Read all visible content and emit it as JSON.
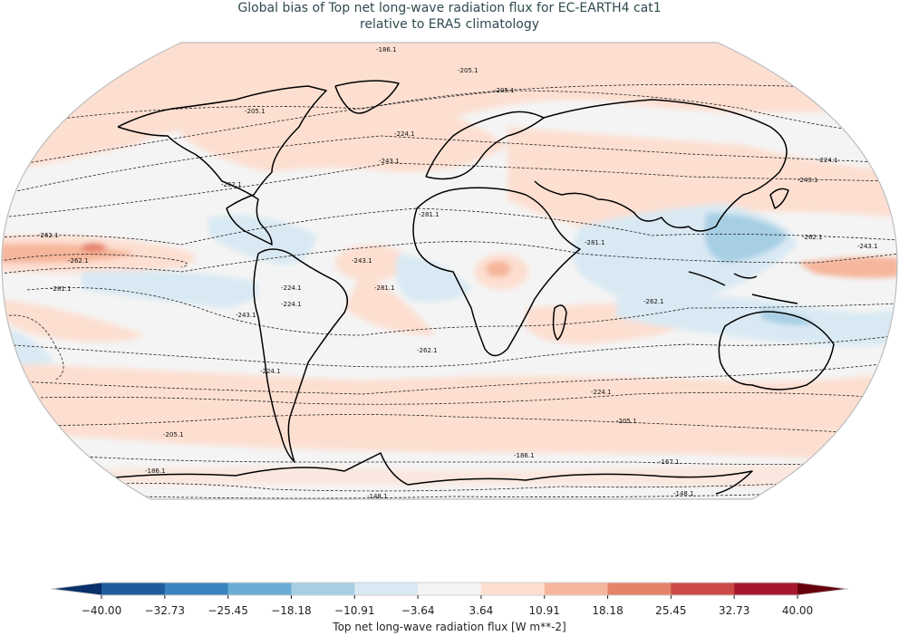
{
  "title": {
    "line1": "Global bias of Top net long-wave radiation flux for EC-EARTH4 cat1",
    "line2": "relative to ERA5 climatology"
  },
  "colorbar": {
    "label": "Top net long-wave radiation flux [W m**-2]",
    "ticks": [
      "−40.00",
      "−32.73",
      "−25.45",
      "−18.18",
      "−10.91",
      "−3.64",
      "3.64",
      "10.91",
      "18.18",
      "25.45",
      "32.73",
      "40.00"
    ],
    "colors": [
      "#08306b",
      "#1f5c9c",
      "#3a84c0",
      "#6aadd4",
      "#a7cfe4",
      "#d9e9f3",
      "#f4f4f4",
      "#fddfd1",
      "#f6b69b",
      "#e5826a",
      "#cc4a45",
      "#a5182d",
      "#67000d"
    ],
    "extend": "both"
  },
  "map": {
    "projection": "Robinson",
    "contour_labels": [
      "-186.1",
      "-205.1",
      "-205.1",
      "-205.1",
      "-224.1",
      "-224.1",
      "-243.1",
      "-243.1",
      "-262.1",
      "-262.1",
      "-262.1",
      "-281.1",
      "-281.1",
      "-262.1",
      "-262.1",
      "-243.1",
      "-243.1",
      "-224.1",
      "-224.1",
      "-205.1",
      "-205.1",
      "-186.1",
      "-186.1",
      "-167.1",
      "-148.1",
      "-148.1",
      "-243.1",
      "-224.1",
      "-281.1",
      "-262.1",
      "-281.1",
      "-224.1"
    ]
  },
  "chart_data": {
    "type": "heatmap",
    "title": "Global bias of Top net long-wave radiation flux for EC-EARTH4 cat1 relative to ERA5 climatology",
    "colorbar_label": "Top net long-wave radiation flux [W m**-2]",
    "levels": [
      -40.0,
      -32.73,
      -25.45,
      -18.18,
      -10.91,
      -3.64,
      3.64,
      10.91,
      18.18,
      25.45,
      32.73,
      40.0
    ],
    "vmin": -40.0,
    "vmax": 40.0,
    "colormap": "RdBu_r",
    "contour_levels": [
      -281.1,
      -262.1,
      -243.1,
      -224.1,
      -205.1,
      -186.1,
      -167.1,
      -148.1
    ],
    "contour_style": "dashed black, labeled (ERA5 climatology)",
    "projection": "Robinson",
    "observations": [
      "Positive bias (3.64 to 10.91) widespread over northern high latitudes and Southern Ocean ~40-60S",
      "Strong positive bias (up to ~25) in tropical eastern Pacific ITCZ band",
      "Positive bias ~10-18 over central Africa",
      "Negative bias (-3.64 to -18.18) over Maritime Continent / western Pacific warm pool",
      "Negative bias over northern South America / Amazon and tropical southeast Pacific"
    ]
  }
}
